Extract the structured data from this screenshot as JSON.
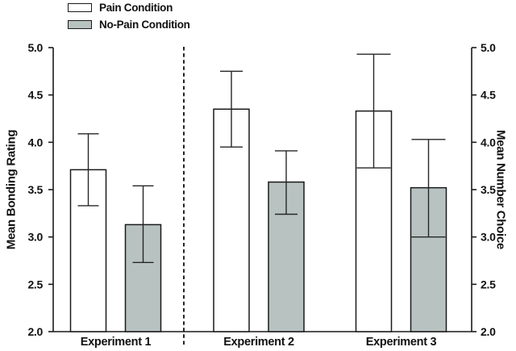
{
  "legend": {
    "items": [
      {
        "label": "Pain Condition",
        "fill": "#ffffff"
      },
      {
        "label": "No-Pain Condition",
        "fill": "#b8c3c1"
      }
    ]
  },
  "axes": {
    "left_label": "Mean Bonding Rating",
    "right_label": "Mean Number Choice"
  },
  "chart_data": {
    "type": "bar",
    "title": "",
    "xlabel": "",
    "ylabel_left": "Mean Bonding Rating",
    "ylabel_right": "Mean Number Choice",
    "categories": [
      "Experiment 1",
      "Experiment 2",
      "Experiment 3"
    ],
    "series": [
      {
        "name": "Pain Condition",
        "fill": "#ffffff",
        "values": [
          3.71,
          4.35,
          4.33
        ],
        "error_low": [
          3.33,
          3.95,
          3.73
        ],
        "error_high": [
          4.09,
          4.75,
          4.93
        ]
      },
      {
        "name": "No-Pain Condition",
        "fill": "#b8c3c1",
        "values": [
          3.13,
          3.58,
          3.52
        ],
        "error_low": [
          2.73,
          3.24,
          3.0
        ],
        "error_high": [
          3.54,
          3.91,
          4.03
        ]
      }
    ],
    "ylim": [
      2.0,
      5.0
    ],
    "ytick_step": 0.5,
    "ytick_format_decimals": 1,
    "grid": false,
    "legend_position": "top-left",
    "separator_after_category": 0,
    "error_cap_widths": [
      26,
      28,
      42
    ],
    "stroke_color": "#1a1a1a"
  }
}
